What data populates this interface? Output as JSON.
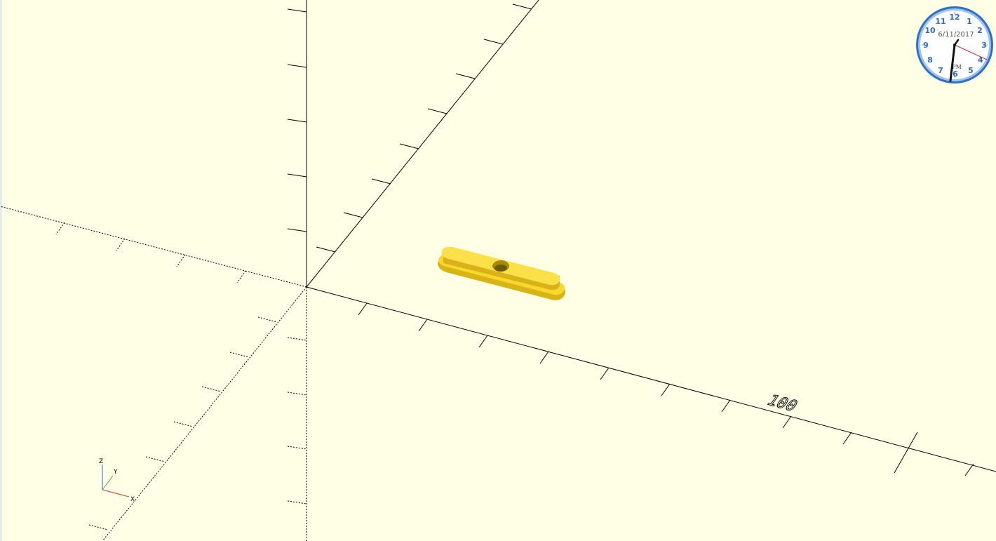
{
  "viewport": {
    "background": "#ffffe5",
    "axis_color": "#000000",
    "model_color": "#f9d72c",
    "model_shade": "#c9a70f"
  },
  "ruler": {
    "scale_label": "100"
  },
  "axes_indicator": {
    "z_label": "Z",
    "y_label": "Y",
    "x_label": "X",
    "x_color": "#e0302c",
    "y_color": "#3cb043",
    "z_color": "#2b5fd9"
  },
  "clock_widget": {
    "date": "6/11/2017",
    "ampm": "PM",
    "numerals": [
      "12",
      "1",
      "2",
      "3",
      "4",
      "5",
      "6",
      "7",
      "8",
      "9",
      "10",
      "11"
    ],
    "rim_color": "#3b7bd0",
    "numeral_color": "#2d6bc7",
    "second_hand_color": "#d8252a"
  }
}
